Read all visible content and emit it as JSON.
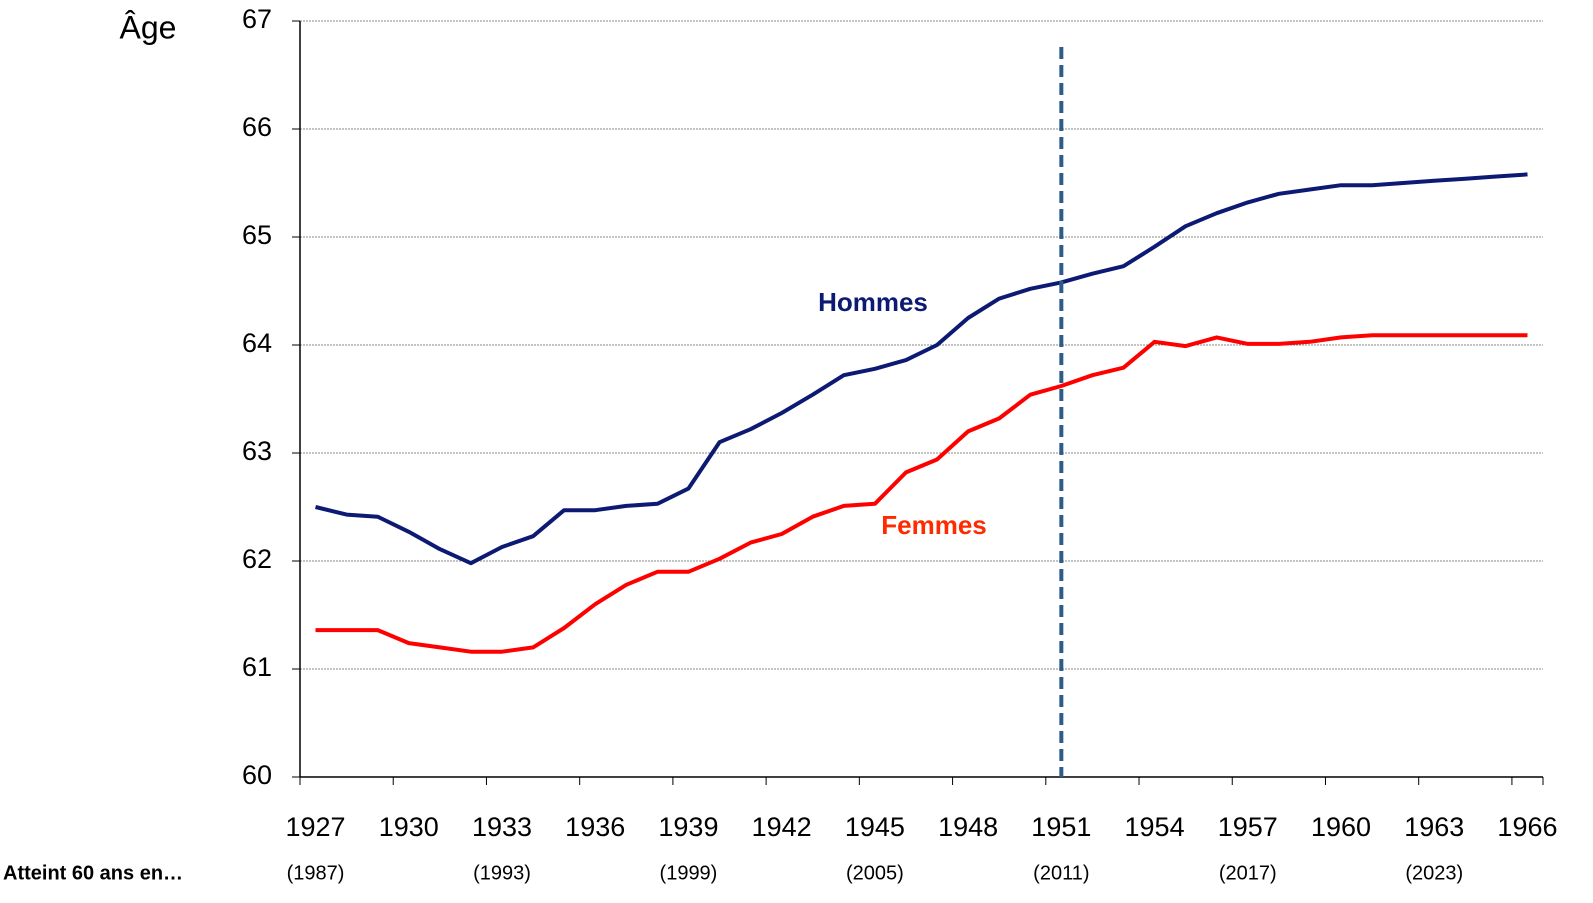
{
  "chart_data": {
    "type": "line",
    "y_label": "Âge",
    "x_secondary_title": "Atteint 60 ans en…",
    "categories": [
      1927,
      null,
      null,
      1930,
      null,
      null,
      1933,
      null,
      null,
      1936,
      null,
      null,
      1939,
      null,
      null,
      1942,
      null,
      null,
      1945,
      null,
      null,
      1948,
      null,
      null,
      1951,
      null,
      null,
      1954,
      null,
      null,
      1957,
      null,
      null,
      1960,
      null,
      null,
      1963,
      null,
      null,
      1966
    ],
    "secondary_categories": [
      "(1987)",
      null,
      null,
      null,
      null,
      null,
      "(1993)",
      null,
      null,
      null,
      null,
      null,
      "(1999)",
      null,
      null,
      null,
      null,
      null,
      "(2005)",
      null,
      null,
      null,
      null,
      null,
      "(2011)",
      null,
      null,
      null,
      null,
      null,
      "(2017)",
      null,
      null,
      null,
      null,
      null,
      "(2023)",
      null,
      null,
      null
    ],
    "series": [
      {
        "name": "Hommes",
        "color": "#0d1a73",
        "values": [
          62.5,
          62.43,
          62.41,
          62.27,
          62.11,
          61.98,
          62.13,
          62.23,
          62.47,
          62.47,
          62.51,
          62.53,
          62.67,
          63.1,
          63.22,
          63.37,
          63.54,
          63.72,
          63.78,
          63.86,
          64.0,
          64.25,
          64.43,
          64.52,
          64.58,
          64.66,
          64.73,
          64.91,
          65.1,
          65.22,
          65.32,
          65.4,
          65.44,
          65.48,
          65.48,
          65.5,
          65.52,
          65.54,
          65.56,
          65.58
        ]
      },
      {
        "name": "Femmes",
        "color": "#ff0000",
        "values": [
          61.36,
          61.36,
          61.36,
          61.24,
          61.2,
          61.16,
          61.16,
          61.2,
          61.38,
          61.6,
          61.78,
          61.9,
          61.9,
          62.02,
          62.17,
          62.25,
          62.41,
          62.51,
          62.53,
          62.82,
          62.94,
          63.2,
          63.32,
          63.54,
          63.62,
          63.72,
          63.79,
          64.03,
          63.99,
          64.07,
          64.01,
          64.01,
          64.03,
          64.07,
          64.09,
          64.09,
          64.09,
          64.09,
          64.09,
          64.09
        ]
      }
    ],
    "reference_line": {
      "x": 1951,
      "color": "#2e5c8a",
      "style": "dashed"
    },
    "ylim": [
      60,
      67
    ],
    "yticks": [
      60,
      61,
      62,
      63,
      64,
      65,
      66,
      67
    ],
    "grid": true
  }
}
